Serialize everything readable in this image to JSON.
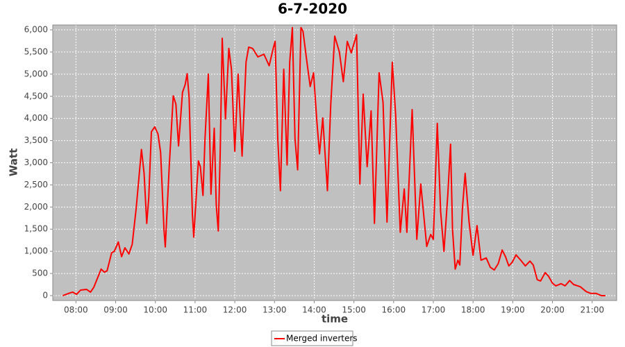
{
  "chart_data": {
    "type": "line",
    "title": "6-7-2020",
    "x_label": "time",
    "y_label": "Watt",
    "x": [
      "07:40",
      "07:51",
      "07:55",
      "08:01",
      "08:07",
      "08:16",
      "08:22",
      "08:27",
      "08:33",
      "08:38",
      "08:43",
      "08:47",
      "08:54",
      "08:58",
      "09:04",
      "09:09",
      "09:14",
      "09:20",
      "09:25",
      "09:31",
      "09:39",
      "09:43",
      "09:47",
      "09:50",
      "09:54",
      "09:59",
      "10:04",
      "10:08",
      "10:13",
      "10:15",
      "10:21",
      "10:27",
      "10:31",
      "10:35",
      "10:41",
      "10:45",
      "10:48",
      "10:51",
      "10:56",
      "10:58",
      "11:05",
      "11:08",
      "11:12",
      "11:15",
      "11:20",
      "11:24",
      "11:29",
      "11:32",
      "11:35",
      "11:38",
      "11:41",
      "11:46",
      "11:51",
      "11:55",
      "12:00",
      "12:05",
      "12:11",
      "12:17",
      "12:21",
      "12:27",
      "12:35",
      "12:44",
      "12:52",
      "12:58",
      "13:01",
      "13:05",
      "13:09",
      "13:14",
      "13:19",
      "13:23",
      "13:27",
      "13:31",
      "13:35",
      "13:40",
      "13:43",
      "13:49",
      "13:54",
      "13:59",
      "14:04",
      "14:08",
      "14:13",
      "14:20",
      "14:25",
      "14:31",
      "14:38",
      "14:44",
      "14:50",
      "14:56",
      "15:04",
      "15:09",
      "15:14",
      "15:20",
      "15:26",
      "15:31",
      "15:38",
      "15:44",
      "15:50",
      "15:58",
      "16:03",
      "16:10",
      "16:16",
      "16:20",
      "16:28",
      "16:35",
      "16:41",
      "16:50",
      "16:56",
      "17:00",
      "17:06",
      "17:11",
      "17:16",
      "17:22",
      "17:26",
      "17:29",
      "17:33",
      "17:37",
      "17:40",
      "17:44",
      "17:48",
      "17:54",
      "18:00",
      "18:06",
      "18:12",
      "18:20",
      "18:26",
      "18:32",
      "18:38",
      "18:44",
      "18:49",
      "18:54",
      "18:59",
      "19:05",
      "19:12",
      "19:19",
      "19:26",
      "19:31",
      "19:37",
      "19:42",
      "19:49",
      "19:54",
      "20:00",
      "20:05",
      "20:10",
      "20:13",
      "20:19",
      "20:26",
      "20:32",
      "20:42",
      "20:51",
      "20:58",
      "21:06",
      "21:14",
      "21:20"
    ],
    "series": [
      {
        "name": "Merged inverters",
        "color": "#ff0000",
        "values": [
          0,
          60,
          80,
          30,
          125,
          140,
          80,
          190,
          410,
          600,
          530,
          560,
          970,
          1000,
          1210,
          880,
          1080,
          940,
          1160,
          1970,
          3300,
          2760,
          1630,
          2210,
          3700,
          3810,
          3650,
          3230,
          1500,
          1100,
          2910,
          4510,
          4320,
          3380,
          4590,
          4760,
          5010,
          4480,
          1820,
          1320,
          3040,
          2910,
          2260,
          3540,
          5000,
          2290,
          3780,
          2050,
          1460,
          3230,
          5810,
          3990,
          5580,
          5110,
          3260,
          5000,
          3150,
          5270,
          5610,
          5580,
          5390,
          5450,
          5190,
          5580,
          5740,
          3540,
          2370,
          5110,
          2950,
          5270,
          6050,
          3540,
          2840,
          6050,
          5970,
          5270,
          4720,
          5030,
          3930,
          3200,
          4010,
          2370,
          4320,
          5860,
          5500,
          4830,
          5740,
          5480,
          5890,
          2520,
          4550,
          2910,
          4170,
          1630,
          5030,
          4360,
          1660,
          5270,
          4090,
          1430,
          2410,
          1430,
          4200,
          1270,
          2520,
          1110,
          1380,
          1270,
          3890,
          1900,
          1000,
          2320,
          3420,
          1500,
          600,
          800,
          690,
          1970,
          2760,
          1660,
          910,
          1580,
          800,
          850,
          640,
          580,
          720,
          1030,
          880,
          670,
          750,
          920,
          800,
          670,
          780,
          690,
          360,
          330,
          520,
          440,
          280,
          220,
          250,
          270,
          220,
          340,
          250,
          200,
          90,
          50,
          50,
          0,
          0
        ]
      }
    ],
    "xlim": [
      "07:25",
      "21:37"
    ],
    "xticks": [
      "08:00",
      "09:00",
      "10:00",
      "11:00",
      "12:00",
      "13:00",
      "14:00",
      "15:00",
      "16:00",
      "17:00",
      "18:00",
      "19:00",
      "20:00",
      "21:00"
    ],
    "ylim": [
      -110,
      6110
    ],
    "yticks": [
      0,
      500,
      {
        "value": 1000,
        "label": "1,000"
      },
      {
        "value": 1500,
        "label": "1,500"
      },
      {
        "value": 2000,
        "label": "2,000"
      },
      {
        "value": 2500,
        "label": "2,500"
      },
      {
        "value": 3000,
        "label": "3,000"
      },
      {
        "value": 3500,
        "label": "3,500"
      },
      {
        "value": 4000,
        "label": "4,000"
      },
      {
        "value": 4500,
        "label": "4,500"
      },
      {
        "value": 5000,
        "label": "5,000"
      },
      {
        "value": 5500,
        "label": "5,500"
      },
      {
        "value": 6000,
        "label": "6,000"
      }
    ],
    "grid": true,
    "legend": "bottom"
  }
}
